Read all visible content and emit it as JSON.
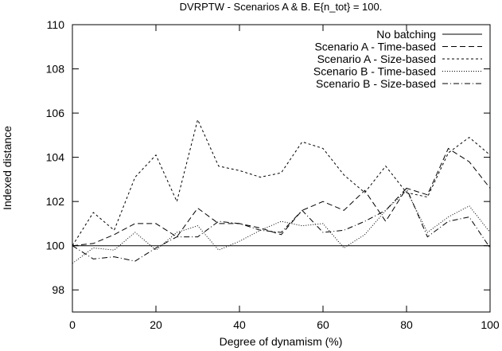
{
  "chart_data": {
    "type": "line",
    "title": "DVRPTW - Scenarios A & B. E{n_tot} = 100.",
    "xlabel": "Degree of dynamism (%)",
    "ylabel": "Indexed distance",
    "xlim": [
      0,
      100
    ],
    "ylim": [
      97,
      110
    ],
    "xticks": [
      0,
      20,
      40,
      60,
      80,
      100
    ],
    "yticks": [
      98,
      100,
      102,
      104,
      106,
      108,
      110
    ],
    "grid": false,
    "legend_position": "top-right",
    "series": [
      {
        "name": "No batching",
        "dash": "solid",
        "x": [
          0,
          100
        ],
        "values": [
          100,
          100
        ]
      },
      {
        "name": "Scenario A - Time-based",
        "dash": "long-dash",
        "x": [
          0,
          5,
          10,
          15,
          20,
          25,
          30,
          35,
          40,
          45,
          50,
          55,
          60,
          65,
          70,
          75,
          80,
          85,
          90,
          95,
          100
        ],
        "values": [
          100.0,
          100.1,
          100.5,
          101.0,
          101.0,
          100.4,
          101.7,
          101.0,
          101.0,
          100.8,
          100.5,
          101.6,
          102.0,
          101.6,
          102.5,
          101.1,
          102.6,
          102.3,
          104.4,
          103.8,
          102.6
        ]
      },
      {
        "name": "Scenario A - Size-based",
        "dash": "short-dash",
        "x": [
          0,
          5,
          10,
          15,
          20,
          25,
          30,
          35,
          40,
          45,
          50,
          55,
          60,
          65,
          70,
          75,
          80,
          85,
          90,
          95,
          100
        ],
        "values": [
          100.0,
          101.5,
          100.7,
          103.1,
          104.1,
          102.0,
          105.7,
          103.6,
          103.4,
          103.1,
          103.3,
          104.7,
          104.4,
          103.2,
          102.4,
          103.6,
          102.4,
          102.2,
          104.2,
          104.9,
          104.1
        ]
      },
      {
        "name": "Scenario B - Time-based",
        "dash": "dotted",
        "x": [
          0,
          5,
          10,
          15,
          20,
          25,
          30,
          35,
          40,
          45,
          50,
          55,
          60,
          65,
          70,
          75,
          80,
          85,
          90,
          95,
          100
        ],
        "values": [
          99.2,
          99.9,
          99.8,
          100.6,
          99.8,
          100.6,
          100.9,
          99.8,
          100.2,
          100.7,
          101.1,
          100.9,
          101.0,
          99.9,
          100.5,
          101.6,
          102.5,
          100.6,
          101.3,
          101.8,
          100.6
        ]
      },
      {
        "name": "Scenario B - Size-based",
        "dash": "dash-dot",
        "x": [
          0,
          5,
          10,
          15,
          20,
          25,
          30,
          35,
          40,
          45,
          50,
          55,
          60,
          65,
          70,
          75,
          80,
          85,
          90,
          95,
          100
        ],
        "values": [
          100.0,
          99.4,
          99.5,
          99.3,
          99.9,
          100.4,
          100.4,
          101.1,
          101.0,
          100.7,
          100.6,
          101.6,
          100.6,
          100.7,
          101.1,
          101.6,
          102.6,
          100.4,
          101.1,
          101.3,
          99.9
        ]
      }
    ]
  }
}
